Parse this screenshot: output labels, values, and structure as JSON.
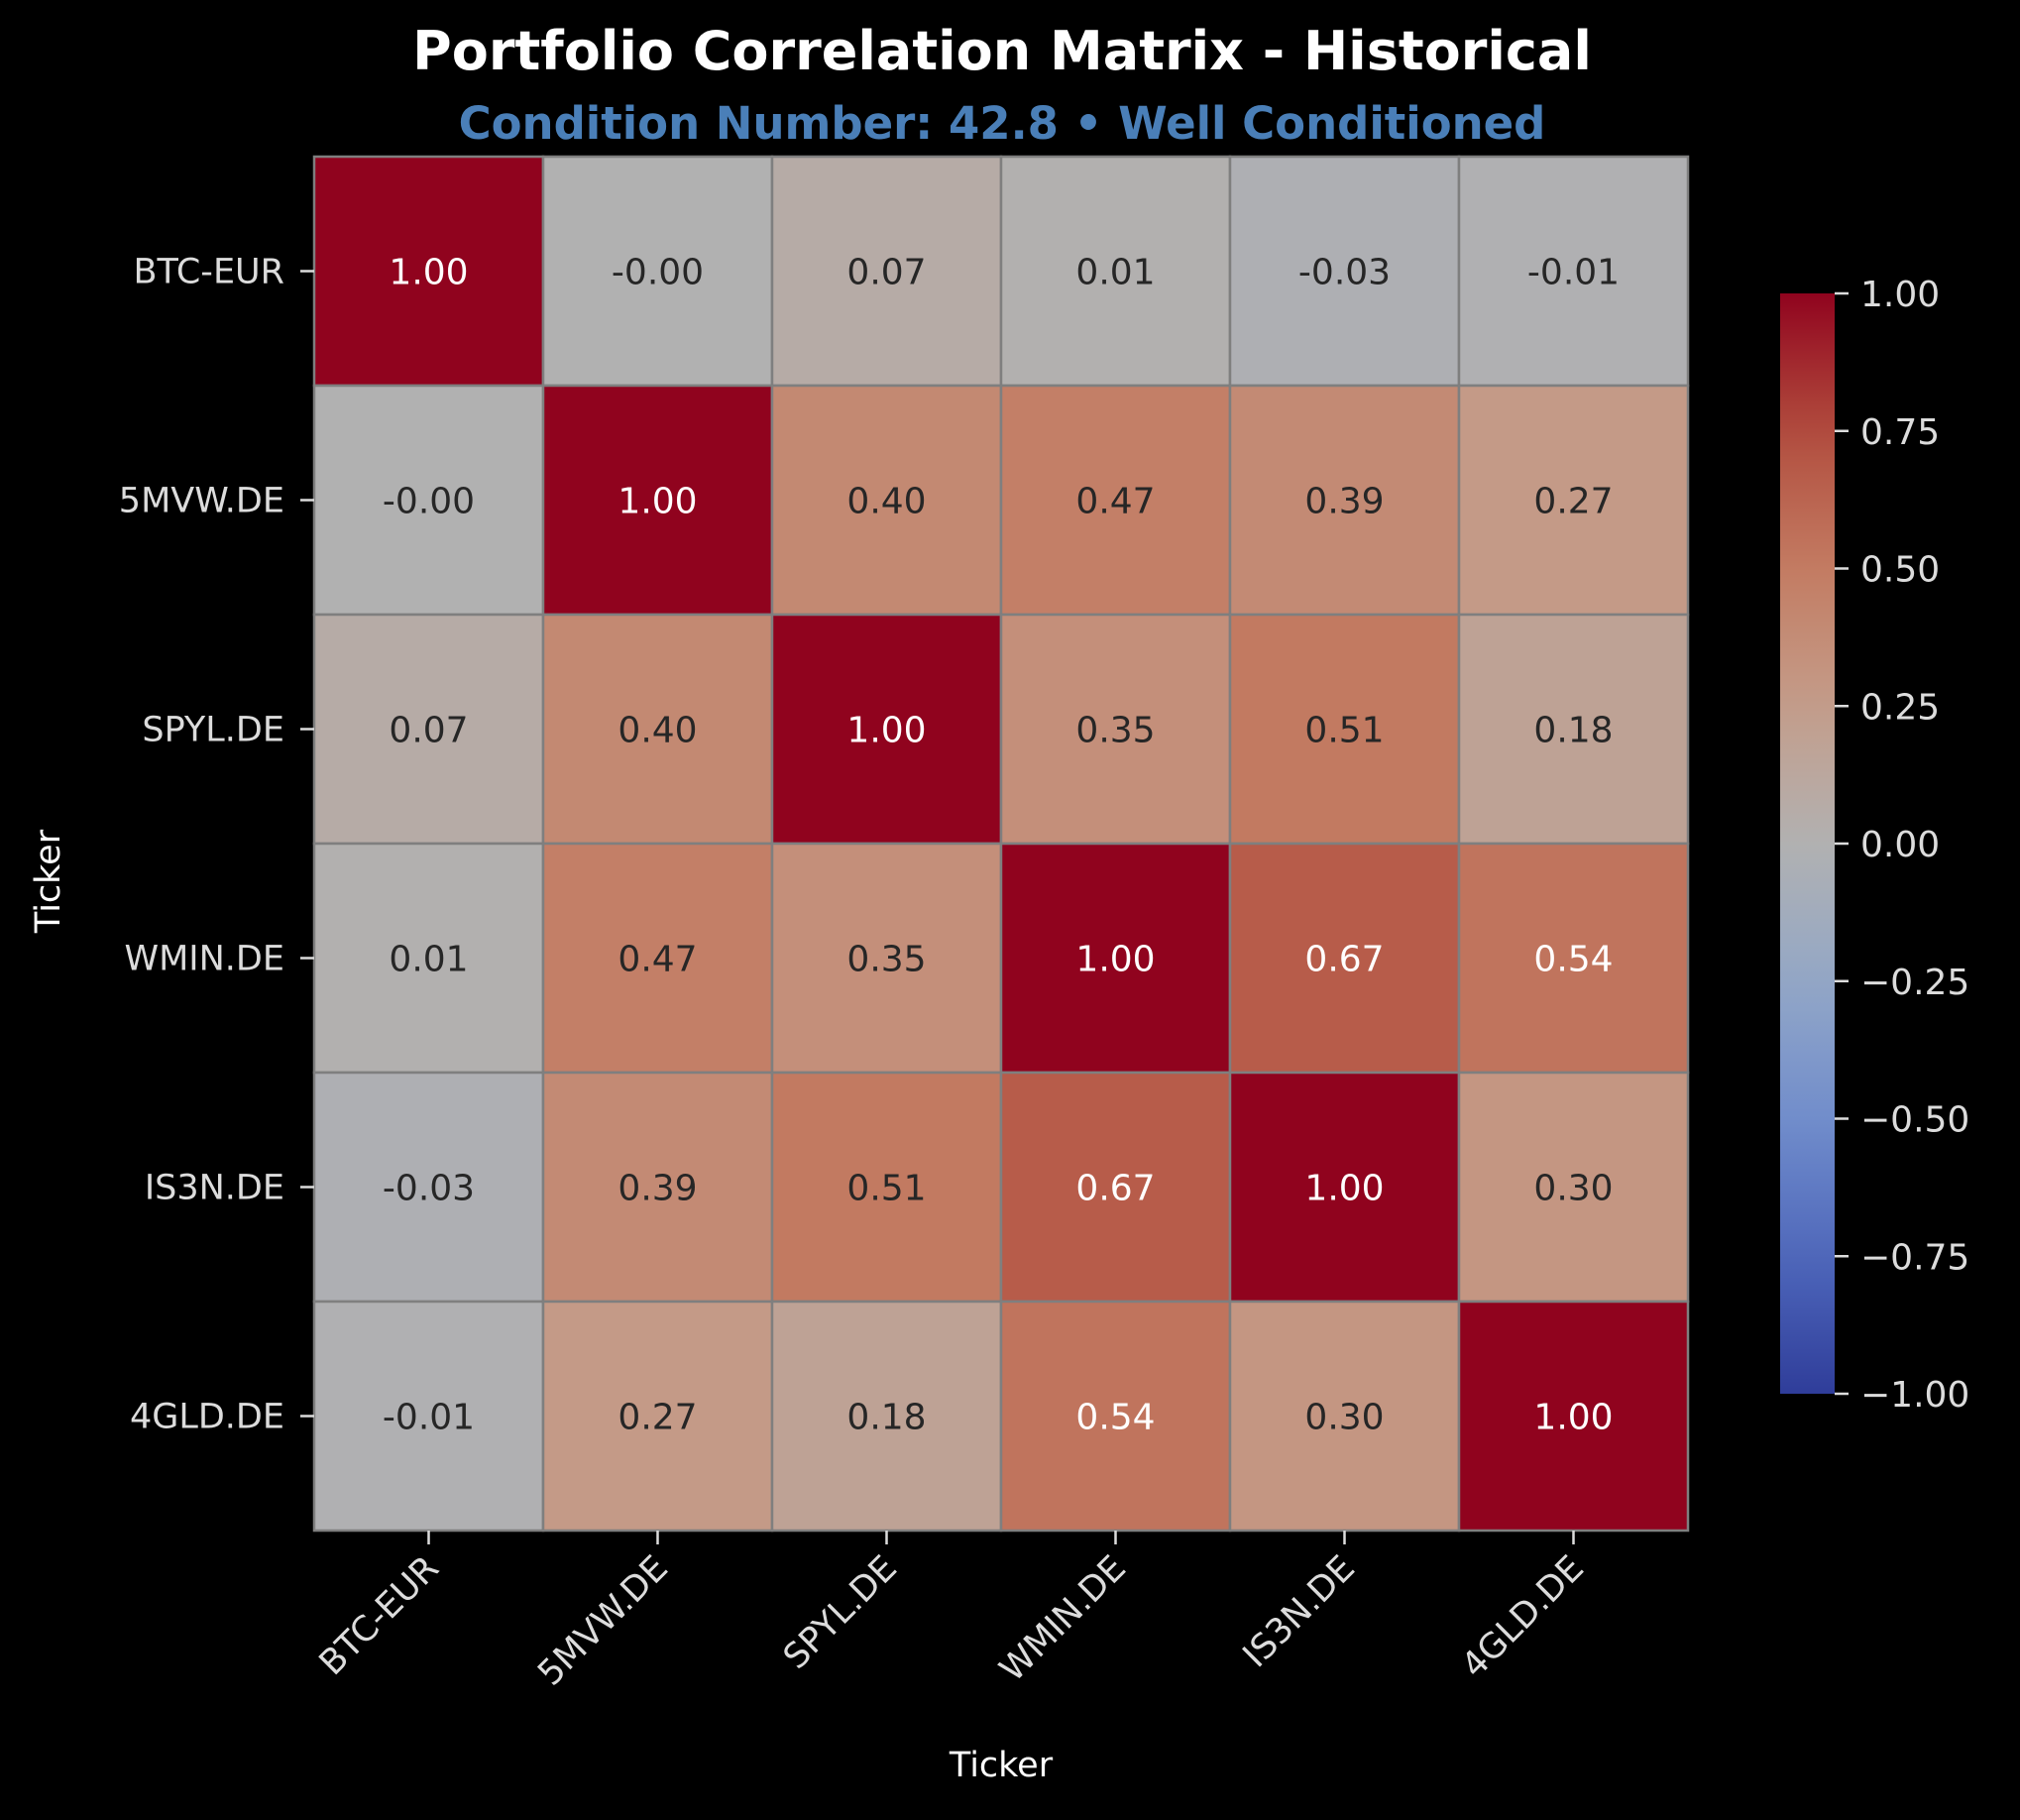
{
  "chart_data": {
    "type": "heatmap",
    "title": "Portfolio Correlation Matrix - Historical",
    "subtitle": "Condition Number: 42.8 • Well Conditioned",
    "xlabel": "Ticker",
    "ylabel": "Ticker",
    "x_categories": [
      "BTC-EUR",
      "5MVW.DE",
      "SPYL.DE",
      "WMIN.DE",
      "IS3N.DE",
      "4GLD.DE"
    ],
    "y_categories": [
      "BTC-EUR",
      "5MVW.DE",
      "SPYL.DE",
      "WMIN.DE",
      "IS3N.DE",
      "4GLD.DE"
    ],
    "values": [
      [
        1.0,
        -0.0,
        0.07,
        0.01,
        -0.03,
        -0.01
      ],
      [
        -0.0,
        1.0,
        0.4,
        0.47,
        0.39,
        0.27
      ],
      [
        0.07,
        0.4,
        1.0,
        0.35,
        0.51,
        0.18
      ],
      [
        0.01,
        0.47,
        0.35,
        1.0,
        0.67,
        0.54
      ],
      [
        -0.03,
        0.39,
        0.51,
        0.67,
        1.0,
        0.3
      ],
      [
        -0.01,
        0.27,
        0.18,
        0.54,
        0.3,
        1.0
      ]
    ],
    "cell_labels": [
      [
        "1.00",
        "-0.00",
        "0.07",
        "0.01",
        "-0.03",
        "-0.01"
      ],
      [
        "-0.00",
        "1.00",
        "0.40",
        "0.47",
        "0.39",
        "0.27"
      ],
      [
        "0.07",
        "0.40",
        "1.00",
        "0.35",
        "0.51",
        "0.18"
      ],
      [
        "0.01",
        "0.47",
        "0.35",
        "1.00",
        "0.67",
        "0.54"
      ],
      [
        "-0.03",
        "0.39",
        "0.51",
        "0.67",
        "1.00",
        "0.30"
      ],
      [
        "-0.01",
        "0.27",
        "0.18",
        "0.54",
        "0.30",
        "1.00"
      ]
    ],
    "colorscale": "coolwarm",
    "vmin": -1.0,
    "vmax": 1.0,
    "colorbar_ticks": [
      1.0,
      0.75,
      0.5,
      0.25,
      0.0,
      -0.25,
      -0.5,
      -0.75,
      -1.0
    ],
    "colorbar_tick_labels": [
      "1.00",
      "0.75",
      "0.50",
      "0.25",
      "0.00",
      "−0.25",
      "−0.50",
      "−0.75",
      "−1.00"
    ],
    "colors": {
      "background": "#000000",
      "title": "#ffffff",
      "subtitle": "#4a7fb8",
      "axis_text": "#dcdcdc",
      "cell_border": "#7f7f7f",
      "dark_label": "#262626",
      "light_label": "#ffffff"
    }
  }
}
